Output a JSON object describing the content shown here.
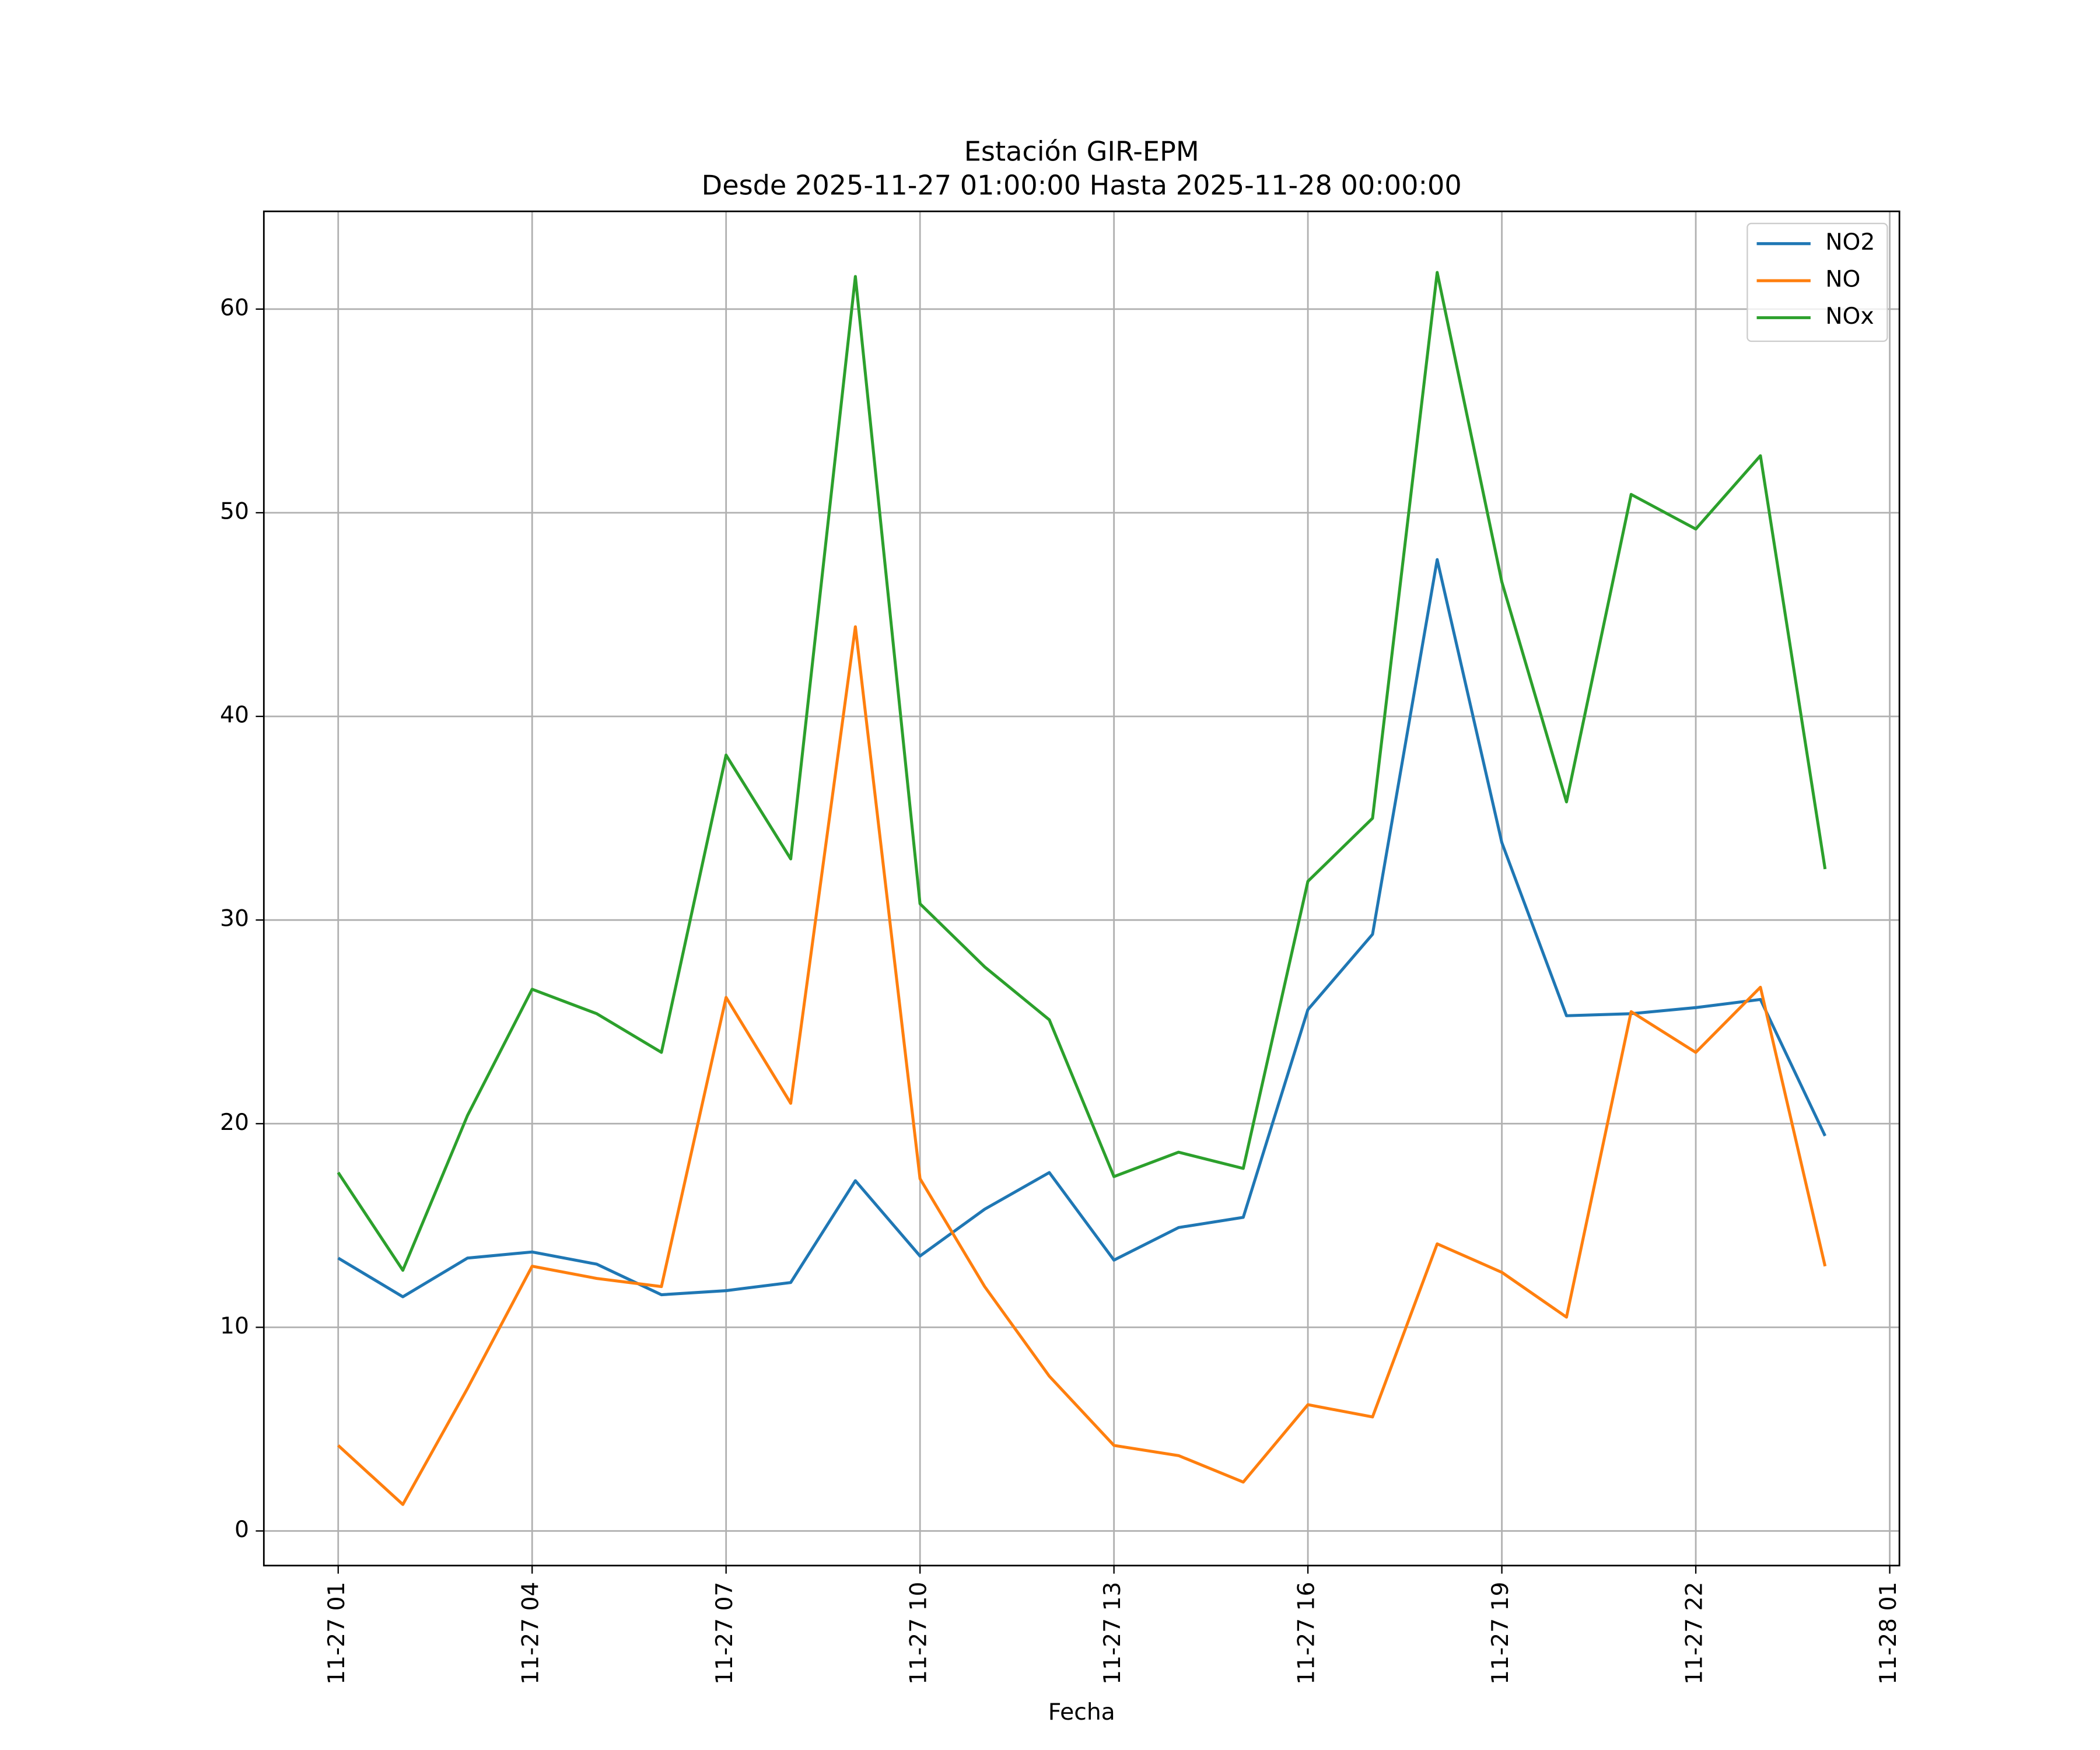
{
  "chart_data": {
    "type": "line",
    "title": "Estación GIR-EPM",
    "subtitle": "Desde 2025-11-27 01:00:00 Hasta 2025-11-28 00:00:00",
    "x_label": "Fecha",
    "x": [
      "11-27 01",
      "11-27 02",
      "11-27 03",
      "11-27 04",
      "11-27 05",
      "11-27 06",
      "11-27 07",
      "11-27 08",
      "11-27 09",
      "11-27 10",
      "11-27 11",
      "11-27 12",
      "11-27 13",
      "11-27 14",
      "11-27 15",
      "11-27 16",
      "11-27 17",
      "11-27 18",
      "11-27 19",
      "11-27 20",
      "11-27 21",
      "11-27 22",
      "11-27 23",
      "11-28 00"
    ],
    "series": [
      {
        "name": "NO2",
        "color": "#1f77b4",
        "values": [
          13.4,
          11.5,
          13.4,
          13.7,
          13.1,
          11.6,
          11.8,
          12.2,
          17.2,
          13.5,
          15.8,
          17.6,
          13.3,
          14.9,
          15.4,
          25.6,
          29.3,
          47.7,
          33.8,
          25.3,
          25.4,
          25.7,
          26.1,
          19.4
        ]
      },
      {
        "name": "NO",
        "color": "#ff7f0e",
        "values": [
          4.2,
          1.3,
          7.0,
          13.0,
          12.4,
          12.0,
          26.2,
          21.0,
          44.4,
          17.3,
          12.0,
          7.6,
          4.2,
          3.7,
          2.4,
          6.2,
          5.6,
          14.1,
          12.7,
          10.5,
          25.5,
          23.5,
          26.7,
          13.0
        ]
      },
      {
        "name": "NOx",
        "color": "#2ca02c",
        "values": [
          17.6,
          12.8,
          20.4,
          26.6,
          25.4,
          23.5,
          38.1,
          33.0,
          61.6,
          30.8,
          27.7,
          25.1,
          17.4,
          18.6,
          17.8,
          31.9,
          35.0,
          61.8,
          46.6,
          35.8,
          50.9,
          49.2,
          52.8,
          32.5
        ]
      }
    ],
    "xlim": [
      "11-26 23:51",
      "11-28 01:09"
    ],
    "xticks": [
      "11-27 01",
      "11-27 04",
      "11-27 07",
      "11-27 10",
      "11-27 13",
      "11-27 16",
      "11-27 19",
      "11-27 22",
      "11-28 01"
    ],
    "ylim": [
      -1.7,
      64.8
    ],
    "yticks": [
      0,
      10,
      20,
      30,
      40,
      50,
      60
    ],
    "grid": true,
    "legend": "upper right"
  }
}
